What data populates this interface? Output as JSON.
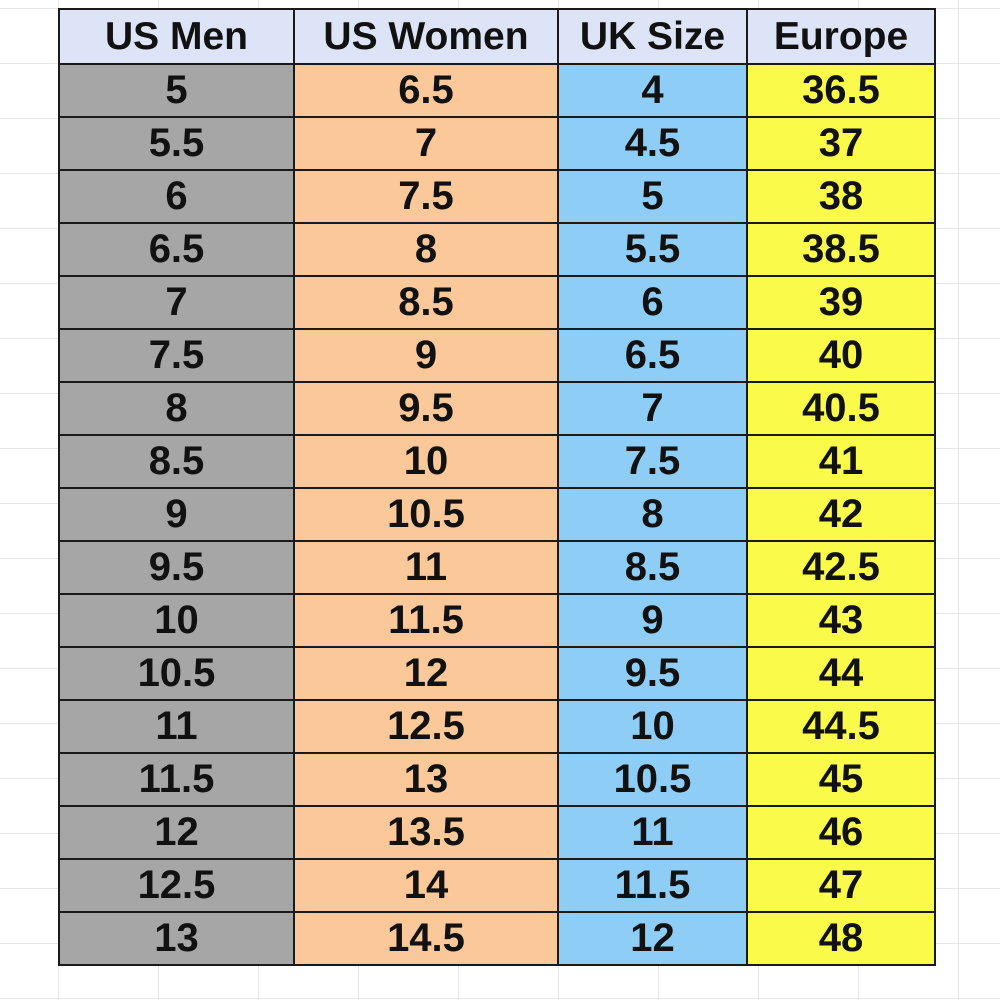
{
  "table": {
    "headers": [
      "US Men",
      "US Women",
      "UK Size",
      "Europe"
    ],
    "rows": [
      [
        "5",
        "6.5",
        "4",
        "36.5"
      ],
      [
        "5.5",
        "7",
        "4.5",
        "37"
      ],
      [
        "6",
        "7.5",
        "5",
        "38"
      ],
      [
        "6.5",
        "8",
        "5.5",
        "38.5"
      ],
      [
        "7",
        "8.5",
        "6",
        "39"
      ],
      [
        "7.5",
        "9",
        "6.5",
        "40"
      ],
      [
        "8",
        "9.5",
        "7",
        "40.5"
      ],
      [
        "8.5",
        "10",
        "7.5",
        "41"
      ],
      [
        "9",
        "10.5",
        "8",
        "42"
      ],
      [
        "9.5",
        "11",
        "8.5",
        "42.5"
      ],
      [
        "10",
        "11.5",
        "9",
        "43"
      ],
      [
        "10.5",
        "12",
        "9.5",
        "44"
      ],
      [
        "11",
        "12.5",
        "10",
        "44.5"
      ],
      [
        "11.5",
        "13",
        "10.5",
        "45"
      ],
      [
        "12",
        "13.5",
        "11",
        "46"
      ],
      [
        "12.5",
        "14",
        "11.5",
        "47"
      ],
      [
        "13",
        "14.5",
        "12",
        "48"
      ]
    ]
  },
  "colors": {
    "header": "#dde4f7",
    "us_men": "#a6a6a6",
    "us_women": "#fbc89a",
    "uk_size": "#8ecdf5",
    "europe": "#fafa4a"
  }
}
